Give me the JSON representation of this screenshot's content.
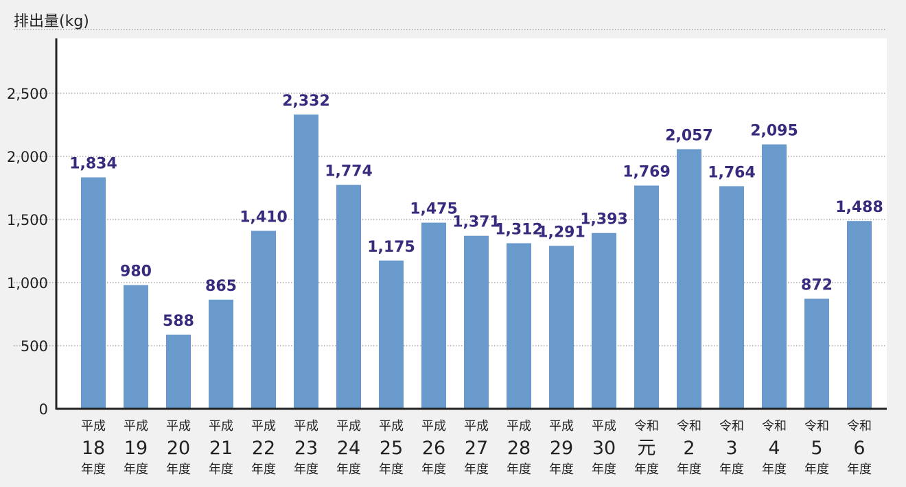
{
  "chart_data": {
    "type": "bar",
    "ylabel": "排出量(kg)",
    "ylim": [
      0,
      2800
    ],
    "yticks": [
      0,
      500,
      1000,
      1500,
      2000,
      2500
    ],
    "ytick_labels": [
      "0",
      "500",
      "1,000",
      "1,500",
      "2,000",
      "2,500"
    ],
    "grid": true,
    "categories": [
      {
        "era": "平成",
        "num": "18",
        "suffix": "年度"
      },
      {
        "era": "平成",
        "num": "19",
        "suffix": "年度"
      },
      {
        "era": "平成",
        "num": "20",
        "suffix": "年度"
      },
      {
        "era": "平成",
        "num": "21",
        "suffix": "年度"
      },
      {
        "era": "平成",
        "num": "22",
        "suffix": "年度"
      },
      {
        "era": "平成",
        "num": "23",
        "suffix": "年度"
      },
      {
        "era": "平成",
        "num": "24",
        "suffix": "年度"
      },
      {
        "era": "平成",
        "num": "25",
        "suffix": "年度"
      },
      {
        "era": "平成",
        "num": "26",
        "suffix": "年度"
      },
      {
        "era": "平成",
        "num": "27",
        "suffix": "年度"
      },
      {
        "era": "平成",
        "num": "28",
        "suffix": "年度"
      },
      {
        "era": "平成",
        "num": "29",
        "suffix": "年度"
      },
      {
        "era": "平成",
        "num": "30",
        "suffix": "年度"
      },
      {
        "era": "令和",
        "num": "元",
        "suffix": "年度"
      },
      {
        "era": "令和",
        "num": "2",
        "suffix": "年度"
      },
      {
        "era": "令和",
        "num": "3",
        "suffix": "年度"
      },
      {
        "era": "令和",
        "num": "4",
        "suffix": "年度"
      },
      {
        "era": "令和",
        "num": "5",
        "suffix": "年度"
      },
      {
        "era": "令和",
        "num": "6",
        "suffix": "年度"
      }
    ],
    "values": [
      1834,
      980,
      588,
      865,
      1410,
      2332,
      1774,
      1175,
      1475,
      1371,
      1312,
      1291,
      1393,
      1769,
      2057,
      1764,
      2095,
      872,
      1488
    ],
    "value_labels": [
      "1,834",
      "980",
      "588",
      "865",
      "1,410",
      "2,332",
      "1,774",
      "1,175",
      "1,475",
      "1,371",
      "1,312",
      "1,291",
      "1,393",
      "1,769",
      "2,057",
      "1,764",
      "2,095",
      "872",
      "1,488"
    ],
    "colors": {
      "bar": "#6a99cb",
      "value_label": "#3a2a7e",
      "plot_bg": "#ffffff",
      "page_bg": "#f1f1f1",
      "grid": "#7a7a7a",
      "axis": "#222222",
      "text": "#222222"
    }
  }
}
